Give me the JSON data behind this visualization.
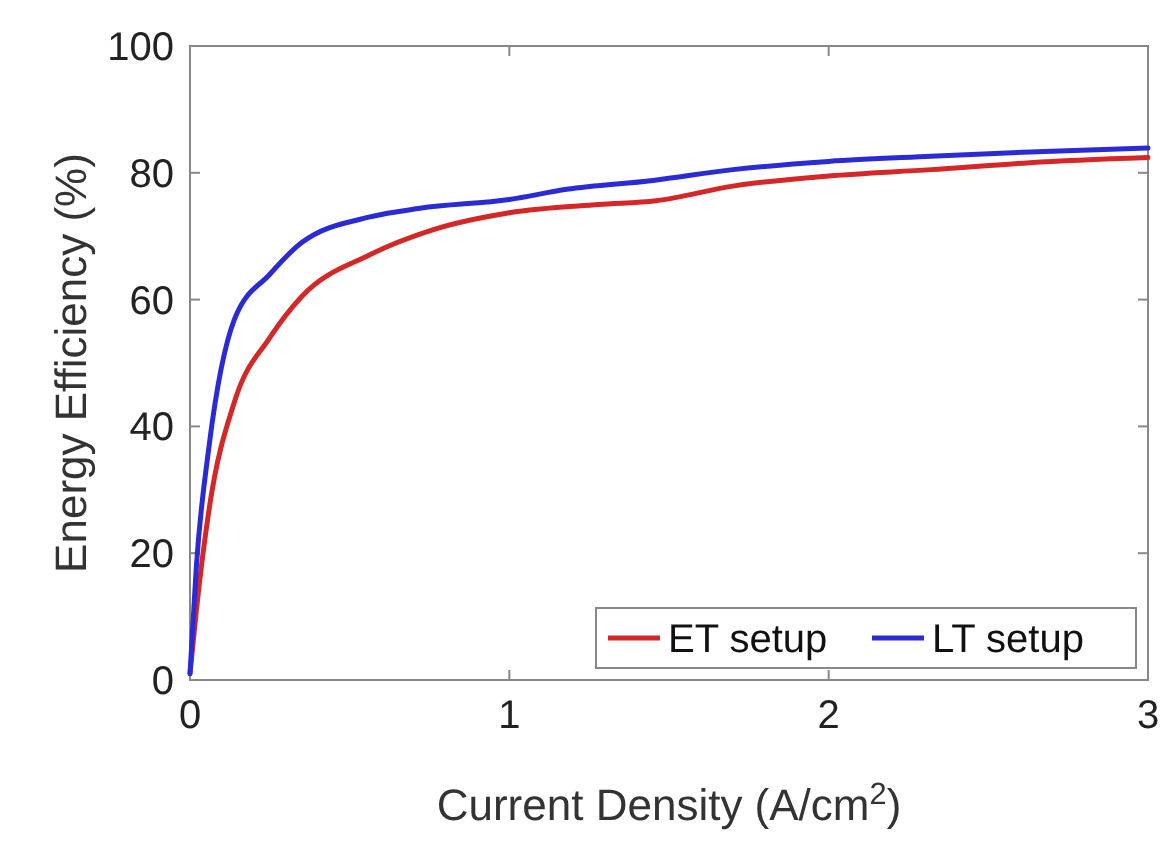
{
  "chart_data": {
    "type": "line",
    "xlabel": "Current Density (A/cm$^{2}$)",
    "ylabel": "Energy Efficiency (%)",
    "xlim": [
      0,
      3
    ],
    "ylim": [
      0,
      100
    ],
    "xticks": [
      0,
      1,
      2,
      3
    ],
    "yticks": [
      0,
      20,
      40,
      60,
      80,
      100
    ],
    "grid": false,
    "legend": "bottom right",
    "line_style": "solid",
    "marker": "none",
    "series": [
      {
        "name": "ET setup",
        "color": "#d62728",
        "x": [
          0,
          0.02,
          0.06,
          0.14,
          0.25,
          0.35,
          0.56,
          0.76,
          1.0,
          1.28,
          1.46,
          1.7,
          2.0,
          2.32,
          2.63,
          3.0
        ],
        "values": [
          1,
          11,
          27,
          44,
          54,
          60.5,
          67,
          71,
          73.7,
          75,
          75.6,
          77.9,
          79.5,
          80.5,
          81.6,
          82.4
        ]
      },
      {
        "name": "LT setup",
        "color": "#2b2bd6",
        "x": [
          0,
          0.02,
          0.06,
          0.14,
          0.25,
          0.35,
          0.56,
          0.72,
          1.0,
          1.18,
          1.45,
          1.7,
          2.0,
          2.32,
          2.63,
          3.0
        ],
        "values": [
          1,
          18,
          37,
          57,
          64,
          69,
          73,
          74.4,
          75.8,
          77.4,
          78.8,
          80.5,
          81.8,
          82.6,
          83.3,
          83.9
        ]
      }
    ]
  }
}
